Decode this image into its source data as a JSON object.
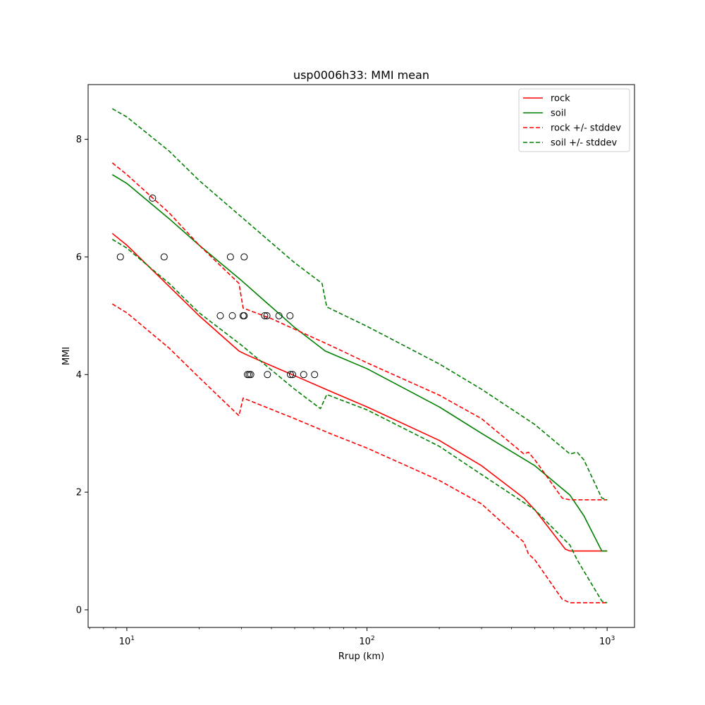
{
  "chart_data": {
    "type": "line",
    "title": "usp0006h33: MMI mean",
    "xlabel": "Rrup (km)",
    "ylabel": "MMI",
    "xscale": "log",
    "xlim": [
      6.9,
      1300
    ],
    "ylim": [
      -0.3,
      8.93
    ],
    "x_ticks": [
      {
        "value": 10,
        "base": "10",
        "exp": "1"
      },
      {
        "value": 100,
        "base": "10",
        "exp": "2"
      },
      {
        "value": 1000,
        "base": "10",
        "exp": "3"
      }
    ],
    "y_ticks": [
      0,
      2,
      4,
      6,
      8
    ],
    "grid": false,
    "legend_position": "top-right",
    "series": [
      {
        "name": "rock",
        "color": "#ff0000",
        "style": "solid",
        "points": [
          [
            8.7,
            6.4
          ],
          [
            10,
            6.2
          ],
          [
            15,
            5.5
          ],
          [
            20,
            5.0
          ],
          [
            29.3,
            4.4
          ],
          [
            31,
            4.35
          ],
          [
            40,
            4.15
          ],
          [
            50,
            3.98
          ],
          [
            70,
            3.72
          ],
          [
            100,
            3.45
          ],
          [
            200,
            2.88
          ],
          [
            300,
            2.45
          ],
          [
            450,
            1.9
          ],
          [
            500,
            1.7
          ],
          [
            670,
            1.03
          ],
          [
            700,
            1.0
          ],
          [
            1000,
            1.0
          ]
        ]
      },
      {
        "name": "soil",
        "color": "#008000",
        "style": "solid",
        "points": [
          [
            8.7,
            7.4
          ],
          [
            10,
            7.25
          ],
          [
            15,
            6.65
          ],
          [
            20,
            6.2
          ],
          [
            30,
            5.6
          ],
          [
            50,
            4.8
          ],
          [
            67,
            4.4
          ],
          [
            100,
            4.1
          ],
          [
            200,
            3.45
          ],
          [
            300,
            3.0
          ],
          [
            500,
            2.45
          ],
          [
            700,
            1.95
          ],
          [
            800,
            1.6
          ],
          [
            950,
            1.0
          ],
          [
            1000,
            1.0
          ]
        ]
      },
      {
        "name": "rock +/- stddev",
        "color": "#ff0000",
        "style": "dashed",
        "points": [
          [
            8.7,
            7.6
          ],
          [
            10,
            7.4
          ],
          [
            15,
            6.75
          ],
          [
            20,
            6.2
          ],
          [
            29.3,
            5.55
          ],
          [
            30.5,
            5.13
          ],
          [
            40,
            4.95
          ],
          [
            70,
            4.5
          ],
          [
            100,
            4.2
          ],
          [
            200,
            3.65
          ],
          [
            300,
            3.25
          ],
          [
            450,
            2.65
          ],
          [
            470,
            2.68
          ],
          [
            500,
            2.55
          ],
          [
            650,
            1.9
          ],
          [
            700,
            1.87
          ],
          [
            1000,
            1.87
          ]
        ]
      },
      {
        "name": "",
        "color": "#ff0000",
        "style": "dashed",
        "points": [
          [
            8.7,
            5.2
          ],
          [
            10,
            5.05
          ],
          [
            15,
            4.45
          ],
          [
            20,
            3.95
          ],
          [
            29.3,
            3.3
          ],
          [
            30.5,
            3.6
          ],
          [
            50,
            3.25
          ],
          [
            70,
            3.0
          ],
          [
            100,
            2.75
          ],
          [
            200,
            2.2
          ],
          [
            300,
            1.8
          ],
          [
            450,
            1.15
          ],
          [
            470,
            0.95
          ],
          [
            500,
            0.85
          ],
          [
            650,
            0.18
          ],
          [
            700,
            0.12
          ],
          [
            1000,
            0.12
          ]
        ]
      },
      {
        "name": "soil +/- stddev",
        "color": "#008000",
        "style": "dashed",
        "points": [
          [
            8.7,
            8.52
          ],
          [
            10,
            8.38
          ],
          [
            15,
            7.8
          ],
          [
            20,
            7.3
          ],
          [
            30,
            6.68
          ],
          [
            50,
            5.9
          ],
          [
            65,
            5.55
          ],
          [
            68,
            5.15
          ],
          [
            100,
            4.82
          ],
          [
            200,
            4.18
          ],
          [
            300,
            3.75
          ],
          [
            500,
            3.15
          ],
          [
            700,
            2.65
          ],
          [
            750,
            2.68
          ],
          [
            800,
            2.55
          ],
          [
            950,
            1.9
          ],
          [
            1000,
            1.87
          ]
        ]
      },
      {
        "name": "",
        "color": "#008000",
        "style": "dashed",
        "points": [
          [
            8.7,
            6.3
          ],
          [
            10,
            6.15
          ],
          [
            15,
            5.55
          ],
          [
            20,
            5.05
          ],
          [
            30,
            4.5
          ],
          [
            50,
            3.75
          ],
          [
            64,
            3.42
          ],
          [
            68,
            3.66
          ],
          [
            100,
            3.4
          ],
          [
            200,
            2.78
          ],
          [
            300,
            2.3
          ],
          [
            500,
            1.7
          ],
          [
            680,
            1.15
          ],
          [
            700,
            1.1
          ],
          [
            750,
            0.85
          ],
          [
            950,
            0.15
          ],
          [
            1000,
            0.12
          ]
        ]
      }
    ],
    "observations": {
      "marker": "open-circle",
      "color": "#000000",
      "points": [
        [
          12.8,
          7
        ],
        [
          9.4,
          6
        ],
        [
          14.3,
          6
        ],
        [
          27,
          6
        ],
        [
          30.8,
          6
        ],
        [
          24.5,
          5
        ],
        [
          27.5,
          5
        ],
        [
          30.5,
          5
        ],
        [
          30.8,
          5
        ],
        [
          37.5,
          5
        ],
        [
          38.3,
          5
        ],
        [
          43,
          5
        ],
        [
          47.8,
          5
        ],
        [
          31.8,
          4
        ],
        [
          32.3,
          4
        ],
        [
          32.8,
          4
        ],
        [
          38.5,
          4
        ],
        [
          48,
          4
        ],
        [
          49,
          4
        ],
        [
          54.5,
          4
        ],
        [
          60.5,
          4
        ]
      ]
    }
  }
}
